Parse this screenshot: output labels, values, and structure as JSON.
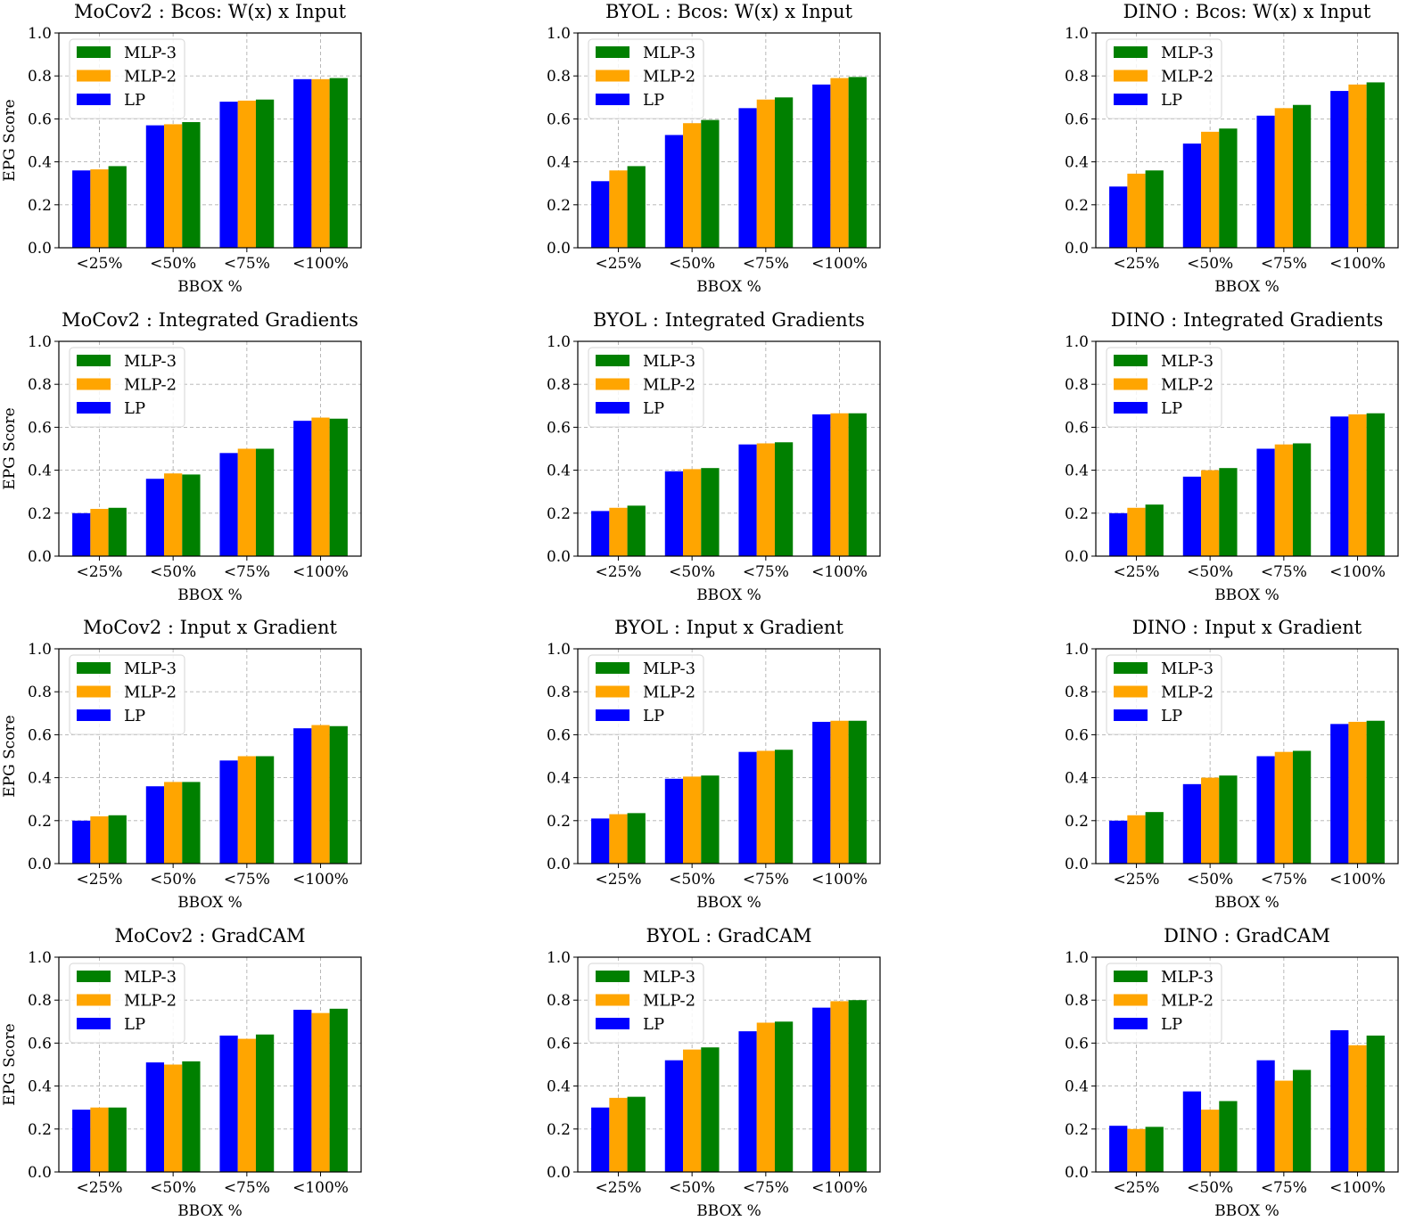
{
  "figure": {
    "colors": {
      "LP": "#0000ff",
      "MLP-2": "#ffa500",
      "MLP-3": "#008000",
      "grid": "#b0b0b0",
      "axis": "#000000"
    },
    "legend_order": [
      "MLP-3",
      "MLP-2",
      "LP"
    ],
    "legend_position": "upper-left"
  },
  "chart_data": [
    {
      "type": "bar",
      "title": "MoCov2 : Bcos: W(x) x Input",
      "xlabel": "BBOX %",
      "ylabel": "EPG Score",
      "ylim": [
        0,
        1
      ],
      "yticks": [
        "0.0",
        "0.2",
        "0.4",
        "0.6",
        "0.8",
        "1.0"
      ],
      "grid": true,
      "categories": [
        "<25%",
        "<50%",
        "<75%",
        "<100%"
      ],
      "series": [
        {
          "name": "LP",
          "values": [
            0.36,
            0.57,
            0.68,
            0.785
          ]
        },
        {
          "name": "MLP-2",
          "values": [
            0.365,
            0.575,
            0.685,
            0.785
          ]
        },
        {
          "name": "MLP-3",
          "values": [
            0.38,
            0.585,
            0.69,
            0.79
          ]
        }
      ]
    },
    {
      "type": "bar",
      "title": "BYOL : Bcos: W(x) x Input",
      "xlabel": "BBOX %",
      "ylabel": "",
      "ylim": [
        0,
        1
      ],
      "yticks": [
        "0.0",
        "0.2",
        "0.4",
        "0.6",
        "0.8",
        "1.0"
      ],
      "grid": true,
      "categories": [
        "<25%",
        "<50%",
        "<75%",
        "<100%"
      ],
      "series": [
        {
          "name": "LP",
          "values": [
            0.31,
            0.525,
            0.65,
            0.76
          ]
        },
        {
          "name": "MLP-2",
          "values": [
            0.36,
            0.58,
            0.69,
            0.79
          ]
        },
        {
          "name": "MLP-3",
          "values": [
            0.38,
            0.595,
            0.7,
            0.795
          ]
        }
      ]
    },
    {
      "type": "bar",
      "title": "DINO : Bcos: W(x) x Input",
      "xlabel": "BBOX %",
      "ylabel": "",
      "ylim": [
        0,
        1
      ],
      "yticks": [
        "0.0",
        "0.2",
        "0.4",
        "0.6",
        "0.8",
        "1.0"
      ],
      "grid": true,
      "categories": [
        "<25%",
        "<50%",
        "<75%",
        "<100%"
      ],
      "series": [
        {
          "name": "LP",
          "values": [
            0.285,
            0.485,
            0.615,
            0.73
          ]
        },
        {
          "name": "MLP-2",
          "values": [
            0.345,
            0.54,
            0.65,
            0.76
          ]
        },
        {
          "name": "MLP-3",
          "values": [
            0.36,
            0.555,
            0.665,
            0.77
          ]
        }
      ]
    },
    {
      "type": "bar",
      "title": "MoCov2 : Integrated Gradients",
      "xlabel": "BBOX %",
      "ylabel": "EPG Score",
      "ylim": [
        0,
        1
      ],
      "yticks": [
        "0.0",
        "0.2",
        "0.4",
        "0.6",
        "0.8",
        "1.0"
      ],
      "grid": true,
      "categories": [
        "<25%",
        "<50%",
        "<75%",
        "<100%"
      ],
      "series": [
        {
          "name": "LP",
          "values": [
            0.2,
            0.36,
            0.48,
            0.63
          ]
        },
        {
          "name": "MLP-2",
          "values": [
            0.22,
            0.385,
            0.5,
            0.645
          ]
        },
        {
          "name": "MLP-3",
          "values": [
            0.225,
            0.38,
            0.5,
            0.64
          ]
        }
      ]
    },
    {
      "type": "bar",
      "title": "BYOL : Integrated Gradients",
      "xlabel": "BBOX %",
      "ylabel": "",
      "ylim": [
        0,
        1
      ],
      "yticks": [
        "0.0",
        "0.2",
        "0.4",
        "0.6",
        "0.8",
        "1.0"
      ],
      "grid": true,
      "categories": [
        "<25%",
        "<50%",
        "<75%",
        "<100%"
      ],
      "series": [
        {
          "name": "LP",
          "values": [
            0.21,
            0.395,
            0.52,
            0.66
          ]
        },
        {
          "name": "MLP-2",
          "values": [
            0.225,
            0.405,
            0.525,
            0.665
          ]
        },
        {
          "name": "MLP-3",
          "values": [
            0.235,
            0.41,
            0.53,
            0.665
          ]
        }
      ]
    },
    {
      "type": "bar",
      "title": "DINO : Integrated Gradients",
      "xlabel": "BBOX %",
      "ylabel": "",
      "ylim": [
        0,
        1
      ],
      "yticks": [
        "0.0",
        "0.2",
        "0.4",
        "0.6",
        "0.8",
        "1.0"
      ],
      "grid": true,
      "categories": [
        "<25%",
        "<50%",
        "<75%",
        "<100%"
      ],
      "series": [
        {
          "name": "LP",
          "values": [
            0.2,
            0.37,
            0.5,
            0.65
          ]
        },
        {
          "name": "MLP-2",
          "values": [
            0.225,
            0.4,
            0.52,
            0.66
          ]
        },
        {
          "name": "MLP-3",
          "values": [
            0.24,
            0.41,
            0.525,
            0.665
          ]
        }
      ]
    },
    {
      "type": "bar",
      "title": "MoCov2 : Input x Gradient",
      "xlabel": "BBOX %",
      "ylabel": "EPG Score",
      "ylim": [
        0,
        1
      ],
      "yticks": [
        "0.0",
        "0.2",
        "0.4",
        "0.6",
        "0.8",
        "1.0"
      ],
      "grid": true,
      "categories": [
        "<25%",
        "<50%",
        "<75%",
        "<100%"
      ],
      "series": [
        {
          "name": "LP",
          "values": [
            0.2,
            0.36,
            0.48,
            0.63
          ]
        },
        {
          "name": "MLP-2",
          "values": [
            0.22,
            0.38,
            0.5,
            0.645
          ]
        },
        {
          "name": "MLP-3",
          "values": [
            0.225,
            0.38,
            0.5,
            0.64
          ]
        }
      ]
    },
    {
      "type": "bar",
      "title": "BYOL : Input x Gradient",
      "xlabel": "BBOX %",
      "ylabel": "",
      "ylim": [
        0,
        1
      ],
      "yticks": [
        "0.0",
        "0.2",
        "0.4",
        "0.6",
        "0.8",
        "1.0"
      ],
      "grid": true,
      "categories": [
        "<25%",
        "<50%",
        "<75%",
        "<100%"
      ],
      "series": [
        {
          "name": "LP",
          "values": [
            0.21,
            0.395,
            0.52,
            0.66
          ]
        },
        {
          "name": "MLP-2",
          "values": [
            0.23,
            0.405,
            0.525,
            0.665
          ]
        },
        {
          "name": "MLP-3",
          "values": [
            0.235,
            0.41,
            0.53,
            0.665
          ]
        }
      ]
    },
    {
      "type": "bar",
      "title": "DINO : Input x Gradient",
      "xlabel": "BBOX %",
      "ylabel": "",
      "ylim": [
        0,
        1
      ],
      "yticks": [
        "0.0",
        "0.2",
        "0.4",
        "0.6",
        "0.8",
        "1.0"
      ],
      "grid": true,
      "categories": [
        "<25%",
        "<50%",
        "<75%",
        "<100%"
      ],
      "series": [
        {
          "name": "LP",
          "values": [
            0.2,
            0.37,
            0.5,
            0.65
          ]
        },
        {
          "name": "MLP-2",
          "values": [
            0.225,
            0.4,
            0.52,
            0.66
          ]
        },
        {
          "name": "MLP-3",
          "values": [
            0.24,
            0.41,
            0.525,
            0.665
          ]
        }
      ]
    },
    {
      "type": "bar",
      "title": "MoCov2 : GradCAM",
      "xlabel": "BBOX %",
      "ylabel": "EPG Score",
      "ylim": [
        0,
        1
      ],
      "yticks": [
        "0.0",
        "0.2",
        "0.4",
        "0.6",
        "0.8",
        "1.0"
      ],
      "grid": true,
      "categories": [
        "<25%",
        "<50%",
        "<75%",
        "<100%"
      ],
      "series": [
        {
          "name": "LP",
          "values": [
            0.29,
            0.51,
            0.635,
            0.755
          ]
        },
        {
          "name": "MLP-2",
          "values": [
            0.3,
            0.5,
            0.62,
            0.74
          ]
        },
        {
          "name": "MLP-3",
          "values": [
            0.3,
            0.515,
            0.64,
            0.76
          ]
        }
      ]
    },
    {
      "type": "bar",
      "title": "BYOL : GradCAM",
      "xlabel": "BBOX %",
      "ylabel": "",
      "ylim": [
        0,
        1
      ],
      "yticks": [
        "0.0",
        "0.2",
        "0.4",
        "0.6",
        "0.8",
        "1.0"
      ],
      "grid": true,
      "categories": [
        "<25%",
        "<50%",
        "<75%",
        "<100%"
      ],
      "series": [
        {
          "name": "LP",
          "values": [
            0.3,
            0.52,
            0.655,
            0.765
          ]
        },
        {
          "name": "MLP-2",
          "values": [
            0.345,
            0.57,
            0.695,
            0.795
          ]
        },
        {
          "name": "MLP-3",
          "values": [
            0.35,
            0.58,
            0.7,
            0.8
          ]
        }
      ]
    },
    {
      "type": "bar",
      "title": "DINO : GradCAM",
      "xlabel": "BBOX %",
      "ylabel": "",
      "ylim": [
        0,
        1
      ],
      "yticks": [
        "0.0",
        "0.2",
        "0.4",
        "0.6",
        "0.8",
        "1.0"
      ],
      "grid": true,
      "categories": [
        "<25%",
        "<50%",
        "<75%",
        "<100%"
      ],
      "series": [
        {
          "name": "LP",
          "values": [
            0.215,
            0.375,
            0.52,
            0.66
          ]
        },
        {
          "name": "MLP-2",
          "values": [
            0.2,
            0.29,
            0.425,
            0.59
          ]
        },
        {
          "name": "MLP-3",
          "values": [
            0.21,
            0.33,
            0.475,
            0.635
          ]
        }
      ]
    }
  ]
}
